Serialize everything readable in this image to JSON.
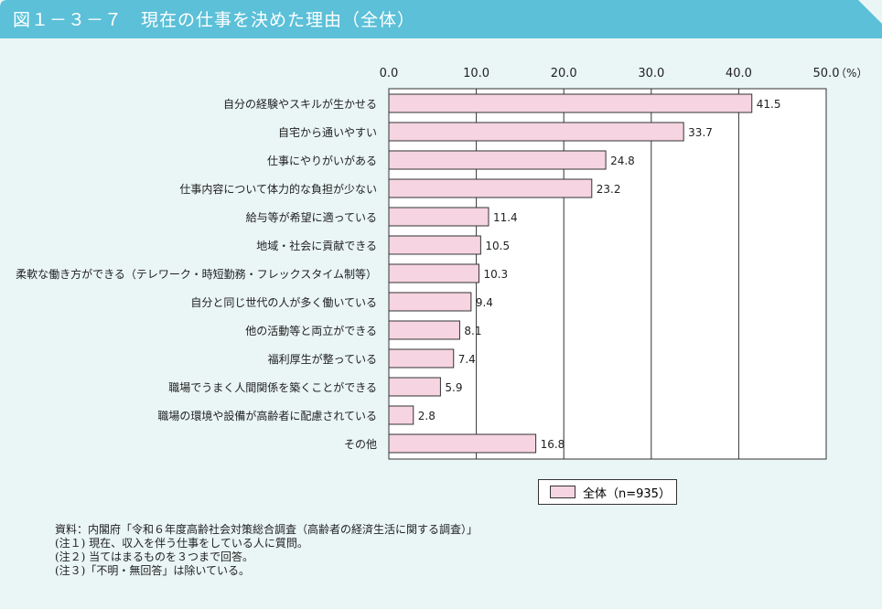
{
  "title": "図１－３－７　現在の仕事を決めた理由（全体）",
  "colors": {
    "header": "#5bc0d8",
    "bar": "#f6d4e1",
    "background": "#eaf5f5"
  },
  "chart_data": {
    "type": "bar",
    "orientation": "horizontal",
    "categories": [
      "自分の経験やスキルが生かせる",
      "自宅から通いやすい",
      "仕事にやりがいがある",
      "仕事内容について体力的な負担が少ない",
      "給与等が希望に適っている",
      "地域・社会に貢献できる",
      "柔軟な働き方ができる（テレワーク・時短勤務・フレックスタイム制等）",
      "自分と同じ世代の人が多く働いている",
      "他の活動等と両立ができる",
      "福利厚生が整っている",
      "職場でうまく人間関係を築くことができる",
      "職場の環境や設備が高齢者に配慮されている",
      "その他"
    ],
    "series": [
      {
        "name": "全体（n=935）",
        "values": [
          41.5,
          33.7,
          24.8,
          23.2,
          11.4,
          10.5,
          10.3,
          9.4,
          8.1,
          7.4,
          5.9,
          2.8,
          16.8
        ]
      }
    ],
    "xlim": [
      0,
      50
    ],
    "ticks": [
      "0.0",
      "10.0",
      "20.0",
      "30.0",
      "40.0",
      "50.0"
    ],
    "unit": "（%）",
    "grid": true,
    "legend_position": "bottom-right"
  },
  "notes": [
    "資料：内閣府「令和６年度高齢社会対策総合調査（高齢者の経済生活に関する調査）」",
    "(注１) 現在、収入を伴う仕事をしている人に質問。",
    "(注２) 当てはまるものを３つまで回答。",
    "(注３)「不明・無回答」は除いている。"
  ]
}
